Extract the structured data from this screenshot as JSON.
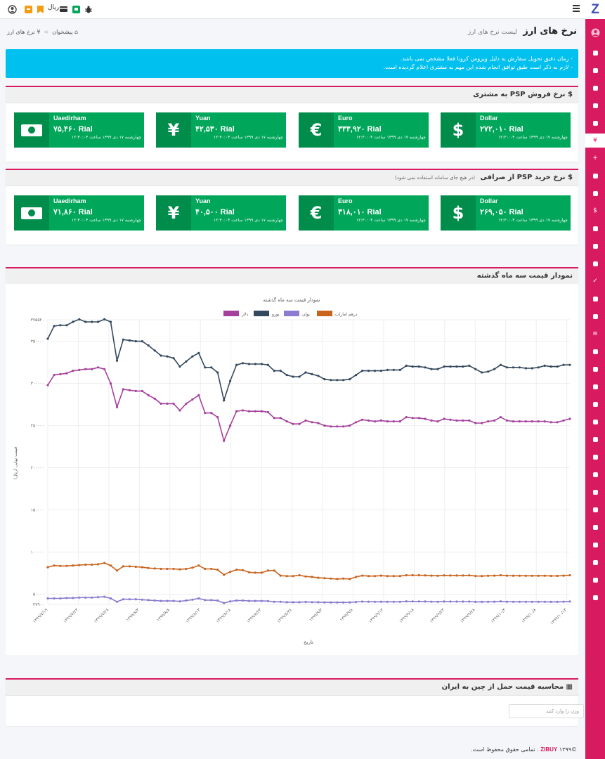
{
  "topbar": {
    "currency_label": "ریال",
    "icons": [
      "user-circle-icon",
      "gift-icon",
      "bookmark-icon",
      "card-icon",
      "chat-icon",
      "bug-icon"
    ]
  },
  "sidebar": {
    "logo": "Z",
    "icons": [
      "avatar-icon",
      "dashboard-icon",
      "bell-icon",
      "wrench-icon",
      "graduation-icon",
      "bug-icon",
      "yen-icon",
      "plus-icon",
      "list-icon",
      "location-icon",
      "dollar-icon",
      "save-icon",
      "refresh-icon",
      "print-icon",
      "check-icon",
      "search-icon",
      "search-icon",
      "menu-icon",
      "group-icon",
      "chat-icon",
      "pie-icon",
      "window-icon",
      "sync-icon",
      "inbox-icon",
      "cut-icon",
      "print-icon",
      "table-icon",
      "table-icon",
      "print-icon",
      "calculator-icon",
      "user-icon",
      "lock-icon",
      "settings-icon"
    ]
  },
  "header": {
    "title": "نرخ های ارز",
    "subtitle": "لیست نرخ های ارز",
    "breadcrumb_home": "پیشخوان",
    "breadcrumb_current": "نرخ های ارز"
  },
  "alert": {
    "line1": "- زمان دقیق تحویل سفارش به دلیل ویروس کرونا فعلا مشخص نمی باشد.",
    "line2": "- لازم به ذکر است طبق توافق انجام شده این مهم به مشتری اعلام گردیده است."
  },
  "sell_panel": {
    "title": "نرخ فروش PSP به مشتری",
    "cards": [
      {
        "name": "Dollar",
        "value": "۲۷۲,۰۱۰ Rial",
        "date": "چهارشنبه ۱۷ دی ۱۳۹۹ ساعت ۱۲:۳۰:۰۴",
        "icon": "dollar-icon",
        "symbol": "$"
      },
      {
        "name": "Euro",
        "value": "۳۳۳,۹۲۰ Rial",
        "date": "چهارشنبه ۱۷ دی ۱۳۹۹ ساعت ۱۲:۳۰:۰۴",
        "icon": "euro-icon",
        "symbol": "€"
      },
      {
        "name": "Yuan",
        "value": "۴۲,۵۳۰ Rial",
        "date": "چهارشنبه ۱۷ دی ۱۳۹۹ ساعت ۱۲:۳۰:۰۴",
        "icon": "yen-icon",
        "symbol": "¥"
      },
      {
        "name": "Uaedirham",
        "value": "۷۵,۴۶۰ Rial",
        "date": "چهارشنبه ۱۷ دی ۱۳۹۹ ساعت ۱۲:۳۰:۰۴",
        "icon": "money-bill-icon",
        "symbol": ""
      }
    ]
  },
  "buy_panel": {
    "title": "نرخ خرید PSP از صرافی",
    "note": "(در هیچ جای سامانه استفاده نمی شود)",
    "cards": [
      {
        "name": "Dollar",
        "value": "۲۶۹,۰۵۰ Rial",
        "date": "چهارشنبه ۱۷ دی ۱۳۹۹ ساعت ۱۲:۳۰:۰۴",
        "icon": "dollar-icon",
        "symbol": "$"
      },
      {
        "name": "Euro",
        "value": "۳۱۸,۰۱۰ Rial",
        "date": "چهارشنبه ۱۷ دی ۱۳۹۹ ساعت ۱۲:۳۰:۰۴",
        "icon": "euro-icon",
        "symbol": "€"
      },
      {
        "name": "Yuan",
        "value": "۴۰,۵۰۰ Rial",
        "date": "چهارشنبه ۱۷ دی ۱۳۹۹ ساعت ۱۲:۳۰:۰۴",
        "icon": "yen-icon",
        "symbol": "¥"
      },
      {
        "name": "Uaedirham",
        "value": "۷۱,۸۶۰ Rial",
        "date": "چهارشنبه ۱۷ دی ۱۳۹۹ ساعت ۱۲:۳۰:۰۴",
        "icon": "money-bill-icon",
        "symbol": ""
      }
    ]
  },
  "chart_panel": {
    "title": "نمودار قیمت سه ماه گذشته"
  },
  "calc_panel": {
    "title": "محاسبه قیمت حمل از چین به ایران",
    "input_placeholder": "وزن را وارد کنید"
  },
  "footer": {
    "copyright": "©۱۳۹۹",
    "brand": "ZIBUY",
    "text": ". تمامی حقوق محفوظ است."
  },
  "chart_data": {
    "type": "line",
    "title": "نمودار قیمت سه ماه گذشته",
    "xlabel": "تاریخ",
    "ylabel": "قیمت نهایی (ریال)",
    "ylim": [
      37900,
      375520
    ],
    "y_ticks": [
      37900,
      50000,
      100000,
      150000,
      200000,
      250000,
      300000,
      350000,
      375520
    ],
    "y_tick_labels": [
      "۳۷۹۰۰",
      "۵۰۰۰۰",
      "۱۰۰۰۰۰",
      "۱۵۰۰۰۰",
      "۲۰۰۰۰۰",
      "۲۵۰۰۰۰",
      "۳۰۰۰۰۰",
      "۳۵۰۰۰۰",
      "۳۷۵۵۲۰"
    ],
    "x_tick_labels": [
      "۱۳۹۹/۷/۱۹",
      "۱۳۹۹/۷/۲۳",
      "۱۳۹۹/۷/۲۸",
      "۱۳۹۹/۸/۳",
      "۱۳۹۹/۸/۸",
      "۱۳۹۹/۸/۱۳",
      "۱۳۹۹/۸/۱۸",
      "۱۳۹۹/۸/۲۳",
      "۱۳۹۹/۸/۲۸",
      "۱۳۹۹/۹/۳",
      "۱۳۹۹/۹/۸",
      "۱۳۹۹/۹/۱۳",
      "۱۳۹۹/۹/۱۸",
      "۱۳۹۹/۹/۲۳",
      "۱۳۹۹/۹/۲۸",
      "۱۳۹۹/۱۰/۳",
      "۱۳۹۹/۱۰/۸",
      "۱۳۹۹/۱۰/۱۳"
    ],
    "grid": true,
    "legend_position": "top",
    "series": [
      {
        "name": "دلار",
        "color": "#a5409c",
        "values": [
          298000,
          310000,
          311000,
          312000,
          315000,
          316000,
          317000,
          317000,
          319000,
          317000,
          300000,
          272000,
          293000,
          292000,
          291000,
          291000,
          286000,
          282000,
          276000,
          276000,
          276000,
          268000,
          276000,
          281000,
          286000,
          265000,
          265000,
          260000,
          232000,
          250000,
          267000,
          268000,
          267000,
          267000,
          267000,
          266000,
          259000,
          259000,
          255000,
          252000,
          252000,
          256000,
          254000,
          253000,
          250000,
          249000,
          249000,
          249000,
          250000,
          254000,
          257000,
          256000,
          255000,
          256000,
          255000,
          255000,
          255000,
          260000,
          259000,
          259000,
          258000,
          256000,
          255000,
          258000,
          257000,
          256000,
          256000,
          256000,
          253000,
          253000,
          255000,
          256000,
          260000,
          256000,
          255000,
          255000,
          255000,
          255000,
          255000,
          255000,
          254000,
          254000,
          256000,
          258000
        ]
      },
      {
        "name": "یورو",
        "color": "#34495e",
        "values": [
          353000,
          368000,
          369000,
          369000,
          373000,
          376000,
          373000,
          373000,
          373000,
          376000,
          373000,
          327000,
          352000,
          351000,
          350000,
          350000,
          345000,
          339000,
          333000,
          332000,
          330000,
          320000,
          326000,
          332000,
          336000,
          319000,
          319000,
          313000,
          280000,
          303000,
          322000,
          324000,
          323000,
          323000,
          323000,
          322000,
          315000,
          315000,
          310000,
          308000,
          308000,
          313000,
          311000,
          309000,
          305000,
          304000,
          304000,
          304000,
          305000,
          310000,
          315000,
          315000,
          315000,
          315000,
          316000,
          316000,
          316000,
          321000,
          320000,
          320000,
          319000,
          317000,
          317000,
          320000,
          320000,
          320000,
          320000,
          321000,
          317000,
          313000,
          314000,
          317000,
          322000,
          319000,
          319000,
          319000,
          318000,
          318000,
          319000,
          321000,
          320000,
          320000,
          322000,
          322000
        ]
      },
      {
        "name": "یوان",
        "color": "#8c7bcf",
        "values": [
          45000,
          45000,
          45000,
          45500,
          45500,
          46000,
          46000,
          46000,
          46500,
          47000,
          45000,
          41000,
          44000,
          44000,
          44000,
          43500,
          43000,
          42500,
          42000,
          42000,
          42000,
          41500,
          42500,
          43500,
          45000,
          43000,
          43000,
          42500,
          39500,
          41500,
          42500,
          42500,
          42000,
          42000,
          42000,
          41800,
          41000,
          41000,
          40500,
          40500,
          40500,
          40800,
          40600,
          40500,
          40300,
          40200,
          40200,
          40200,
          40300,
          40700,
          41200,
          41100,
          41000,
          41100,
          41000,
          41000,
          41000,
          41500,
          41400,
          41400,
          41300,
          41100,
          41000,
          41300,
          41200,
          41200,
          41200,
          41200,
          40900,
          40900,
          41000,
          41100,
          41500,
          41100,
          41000,
          41000,
          41000,
          41000,
          41000,
          41000,
          40900,
          40900,
          41100,
          41300
        ]
      },
      {
        "name": "درهم امارات",
        "color": "#c9641e",
        "values": [
          82000,
          84000,
          83500,
          83500,
          84000,
          84500,
          85000,
          85000,
          85500,
          87000,
          84000,
          78000,
          83000,
          83000,
          82500,
          82000,
          81000,
          80500,
          80000,
          80000,
          80000,
          79500,
          80000,
          81500,
          84000,
          80000,
          80000,
          79000,
          73000,
          76500,
          79000,
          78500,
          76000,
          75500,
          75500,
          78000,
          78000,
          72000,
          71500,
          71500,
          72500,
          71000,
          70500,
          69500,
          69000,
          68500,
          68000,
          68500,
          68000,
          70500,
          72000,
          71500,
          71500,
          72000,
          71500,
          71500,
          71500,
          72500,
          72500,
          72500,
          72300,
          72000,
          71800,
          72300,
          72200,
          72200,
          72200,
          72300,
          71600,
          71500,
          71800,
          72000,
          72500,
          72000,
          71900,
          71900,
          71800,
          71800,
          71800,
          71900,
          71700,
          71700,
          72000,
          72500
        ]
      }
    ]
  }
}
